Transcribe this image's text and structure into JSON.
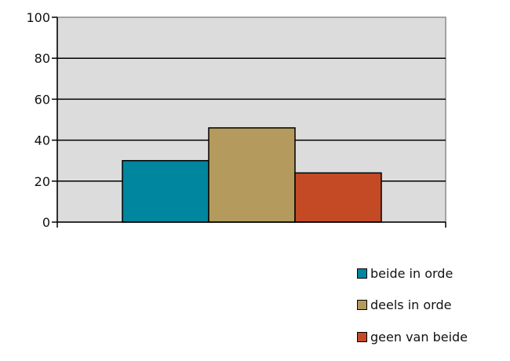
{
  "chart_data": {
    "type": "bar",
    "categories": [
      ""
    ],
    "series": [
      {
        "name": "beide in orde",
        "values": [
          30
        ],
        "color": "#00869E"
      },
      {
        "name": "deels in orde",
        "values": [
          46
        ],
        "color": "#B49B5D"
      },
      {
        "name": "geen van beide",
        "values": [
          24
        ],
        "color": "#C44A26"
      }
    ],
    "ylim": [
      0,
      100
    ],
    "yticks": [
      "0",
      "20",
      "40",
      "60",
      "80",
      "100"
    ],
    "grid": true,
    "plot_background": "#DCDCDC",
    "legend_placement": "bottom-right",
    "title": "",
    "xlabel": "",
    "ylabel": ""
  }
}
